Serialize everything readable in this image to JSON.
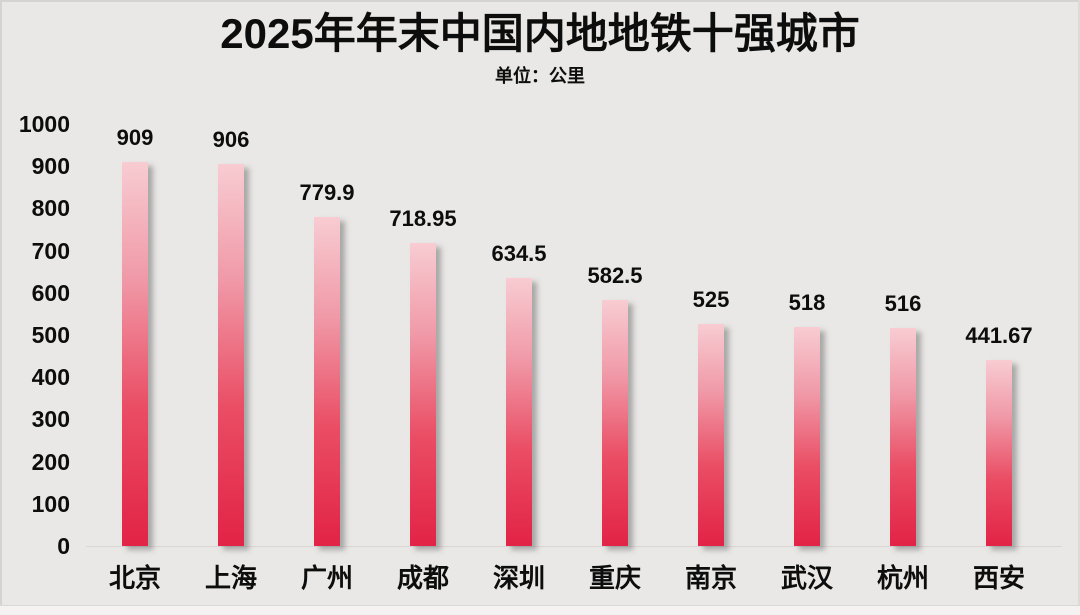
{
  "header": {
    "title": "2025年年末中国内地地铁十强城市",
    "unit_label": "单位：公里"
  },
  "chart_data": {
    "type": "bar",
    "title": "2025年年末中国内地地铁十强城市",
    "subtitle": "单位：公里",
    "categories": [
      "北京",
      "上海",
      "广州",
      "成都",
      "深圳",
      "重庆",
      "南京",
      "武汉",
      "杭州",
      "西安"
    ],
    "values": [
      909,
      906,
      779.9,
      718.95,
      634.5,
      582.5,
      525,
      518,
      516,
      441.67
    ],
    "value_labels": [
      "909",
      "906",
      "779.9",
      "718.95",
      "634.5",
      "582.5",
      "525",
      "518",
      "516",
      "441.67"
    ],
    "xlabel": "",
    "ylabel": "",
    "ylim": [
      0,
      1000
    ],
    "y_ticks": [
      1000,
      900,
      800,
      700,
      600,
      500,
      400,
      300,
      200,
      100,
      0
    ],
    "grid": false,
    "legend": false,
    "data_labels_shown": true
  },
  "colors": {
    "background": "#e9e8e6",
    "bar_gradient_top": "#f8ccd2",
    "bar_gradient_upper_mid": "#f09aa8",
    "bar_gradient_lower_mid": "#ea4d64",
    "bar_gradient_bottom": "#e22346",
    "text": "#0d0d0d",
    "baseline": "#d8d7d5"
  }
}
